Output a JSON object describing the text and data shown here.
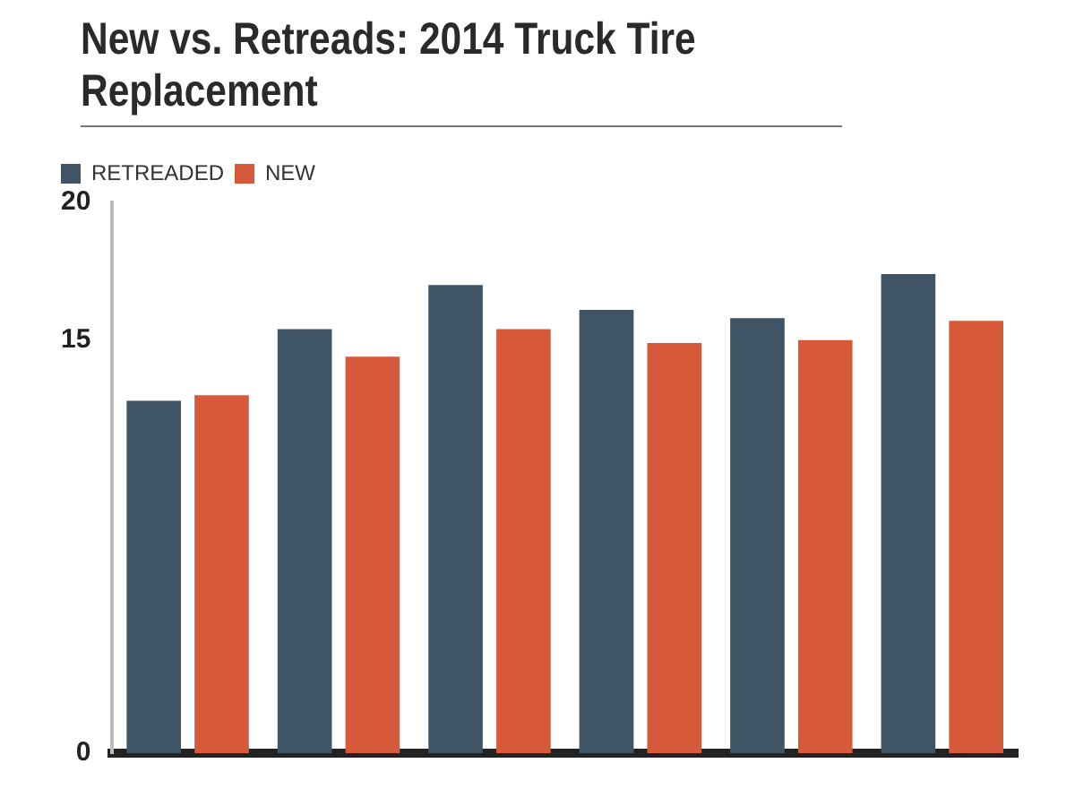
{
  "chart_data": {
    "type": "bar",
    "title": "New vs. Retreads: 2014 Truck Tire Replacement",
    "categories": [
      null,
      null,
      null,
      null,
      null,
      null
    ],
    "series": [
      {
        "name": "RETREADED",
        "color": "#3f5566",
        "values": [
          12.8,
          15.4,
          17.0,
          16.1,
          15.8,
          17.4
        ]
      },
      {
        "name": "NEW",
        "color": "#d65a3a",
        "values": [
          13.0,
          14.4,
          15.4,
          14.9,
          15.0,
          15.7
        ]
      }
    ],
    "ylim": [
      0,
      20
    ],
    "yticks": [
      0,
      15,
      20
    ],
    "grid": false,
    "legend": "top left"
  }
}
